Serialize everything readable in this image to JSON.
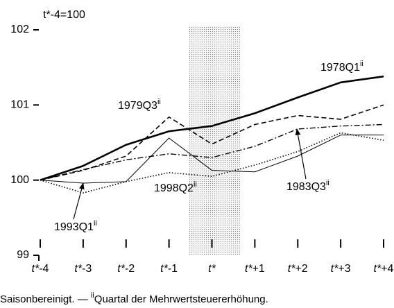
{
  "chart_data": {
    "type": "line",
    "ylabel": "t*-4=100",
    "categories": [
      "t*-4",
      "t*-3",
      "t*-2",
      "t*-1",
      "t*",
      "t*+1",
      "t*+2",
      "t*+3",
      "t*+4"
    ],
    "note_marker": "ii",
    "footnote": "Saisonbereinigt. — ",
    "footnote_text": "Quartal der Mehrwertsteuererhöhung.",
    "ylim": [
      99,
      102
    ],
    "yticks": [
      99,
      100,
      101,
      102
    ],
    "series": [
      {
        "name": "1978Q1",
        "color": "#000000",
        "values": [
          100,
          100.19,
          100.47,
          100.65,
          100.72,
          100.89,
          101.1,
          101.3,
          101.38
        ]
      },
      {
        "name": "1979Q3",
        "color": "#000000",
        "values": [
          100,
          100.13,
          100.32,
          100.84,
          100.48,
          100.74,
          100.86,
          100.81,
          101.0
        ]
      },
      {
        "name": "1983Q3",
        "color": "#000000",
        "values": [
          100,
          100.14,
          100.27,
          100.35,
          100.3,
          100.45,
          100.68,
          100.72,
          100.74
        ]
      },
      {
        "name": "1998Q2",
        "color": "#000000",
        "values": [
          100,
          99.96,
          99.98,
          100.56,
          100.13,
          100.11,
          100.32,
          100.6,
          100.6
        ]
      },
      {
        "name": "1993Q1",
        "color": "#000000",
        "values": [
          100,
          99.83,
          99.98,
          100.1,
          100.05,
          100.2,
          100.38,
          100.63,
          100.53
        ]
      }
    ]
  }
}
